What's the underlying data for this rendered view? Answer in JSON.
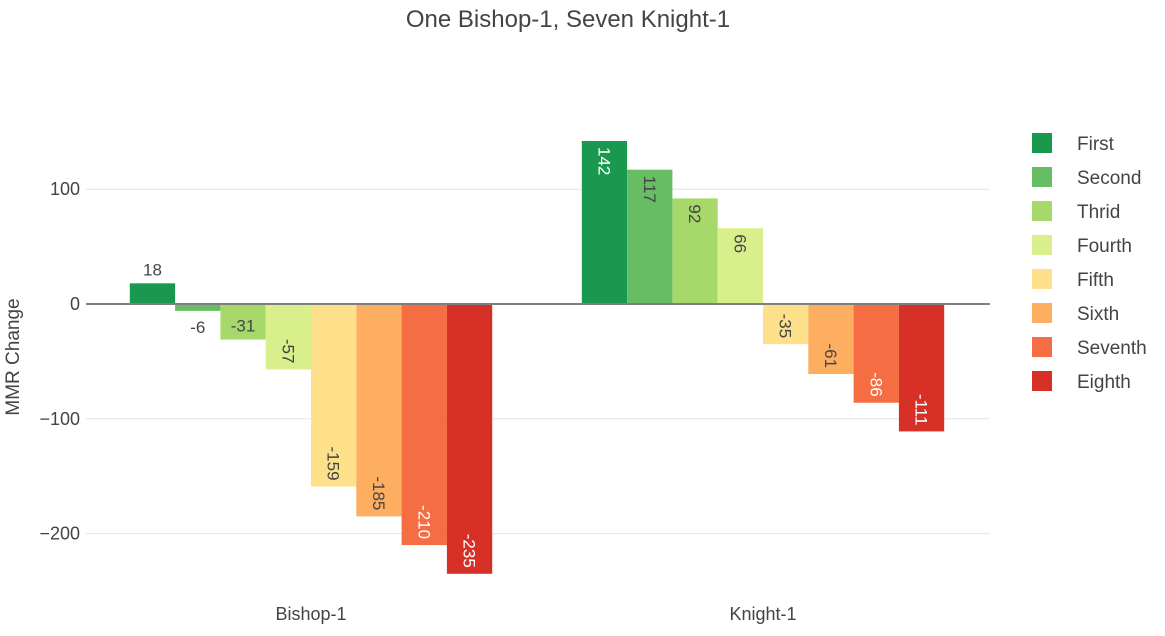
{
  "chart_data": {
    "type": "bar",
    "title": "One Bishop-1, Seven Knight-1",
    "xlabel": "",
    "ylabel": "MMR Change",
    "categories": [
      "Bishop-1",
      "Knight-1"
    ],
    "series": [
      {
        "name": "First",
        "color": "#1a9850",
        "values": [
          18,
          142
        ]
      },
      {
        "name": "Second",
        "color": "#66bd63",
        "values": [
          -6,
          117
        ]
      },
      {
        "name": "Thrid",
        "color": "#a6d96a",
        "values": [
          -31,
          92
        ]
      },
      {
        "name": "Fourth",
        "color": "#d9ef8b",
        "values": [
          -57,
          66
        ]
      },
      {
        "name": "Fifth",
        "color": "#fee08b",
        "values": [
          -159,
          -35
        ]
      },
      {
        "name": "Sixth",
        "color": "#fdae61",
        "values": [
          -185,
          -61
        ]
      },
      {
        "name": "Seventh",
        "color": "#f46d43",
        "values": [
          -210,
          -86
        ]
      },
      {
        "name": "Eighth",
        "color": "#d73027",
        "values": [
          -235,
          -111
        ]
      }
    ],
    "ylim": [
      -236,
      142
    ],
    "yticks": [
      100,
      0,
      -100,
      -200
    ],
    "ytick_labels": [
      "100",
      "0",
      "−100",
      "−200"
    ],
    "grid": true,
    "legend_position": "right"
  }
}
